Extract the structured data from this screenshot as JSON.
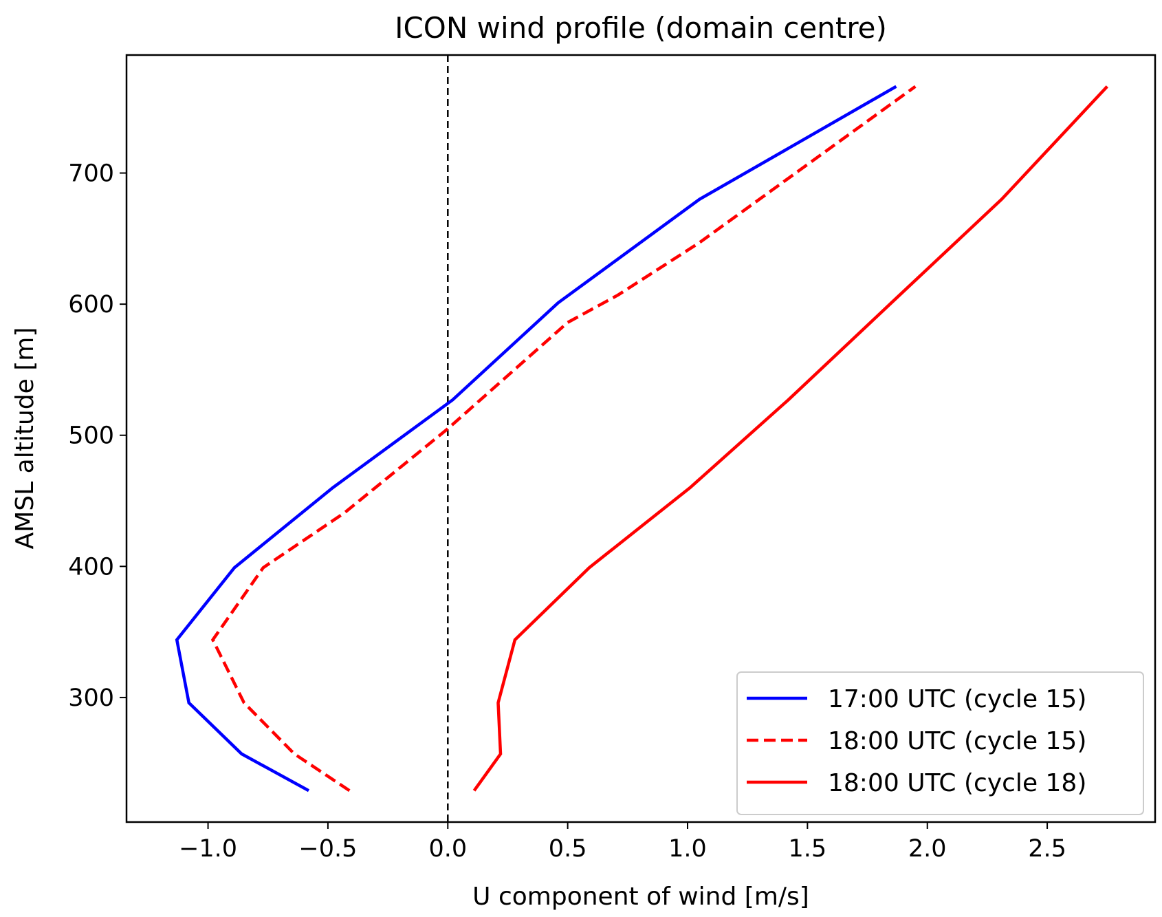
{
  "chart_data": {
    "type": "line",
    "title": "ICON wind profile (domain centre)",
    "xlabel": "U component of wind [m/s]",
    "ylabel": "AMSL altitude [m]",
    "xlim": [
      -1.34,
      2.95
    ],
    "ylim": [
      205,
      790
    ],
    "xticks": [
      -1.0,
      -0.5,
      0.0,
      0.5,
      1.0,
      1.5,
      2.0,
      2.5
    ],
    "xtick_labels": [
      "−1.0",
      "−0.5",
      "0.0",
      "0.5",
      "1.0",
      "1.5",
      "2.0",
      "2.5"
    ],
    "yticks": [
      300,
      400,
      500,
      600,
      700
    ],
    "ytick_labels": [
      "300",
      "400",
      "500",
      "600",
      "700"
    ],
    "grid": false,
    "legend_position": "lower-right",
    "reference_line": {
      "x": 0.0,
      "style": "dashed",
      "color": "#000000"
    },
    "series": [
      {
        "name": "17:00 UTC (cycle 15)",
        "color": "#0000ff",
        "style": "solid",
        "points": [
          [
            -0.58,
            229
          ],
          [
            -0.86,
            257
          ],
          [
            -1.08,
            296
          ],
          [
            -1.13,
            344
          ],
          [
            -0.89,
            399
          ],
          [
            -0.48,
            460
          ],
          [
            0.02,
            527
          ],
          [
            0.46,
            601
          ],
          [
            1.05,
            680
          ],
          [
            1.87,
            766
          ]
        ]
      },
      {
        "name": "18:00 UTC (cycle 15)",
        "color": "#ff0000",
        "style": "dashed",
        "points": [
          [
            -0.41,
            229
          ],
          [
            -0.64,
            257
          ],
          [
            -0.85,
            296
          ],
          [
            -0.98,
            344
          ],
          [
            -0.77,
            399
          ],
          [
            -0.43,
            441
          ],
          [
            0.0,
            505
          ],
          [
            0.5,
            586
          ],
          [
            0.71,
            607
          ],
          [
            1.05,
            647
          ],
          [
            1.95,
            766
          ]
        ]
      },
      {
        "name": "18:00 UTC (cycle 18)",
        "color": "#ff0000",
        "style": "solid",
        "points": [
          [
            0.11,
            229
          ],
          [
            0.22,
            257
          ],
          [
            0.21,
            296
          ],
          [
            0.28,
            344
          ],
          [
            0.59,
            399
          ],
          [
            1.01,
            460
          ],
          [
            1.42,
            527
          ],
          [
            1.85,
            601
          ],
          [
            2.31,
            680
          ],
          [
            2.75,
            766
          ]
        ]
      }
    ]
  }
}
